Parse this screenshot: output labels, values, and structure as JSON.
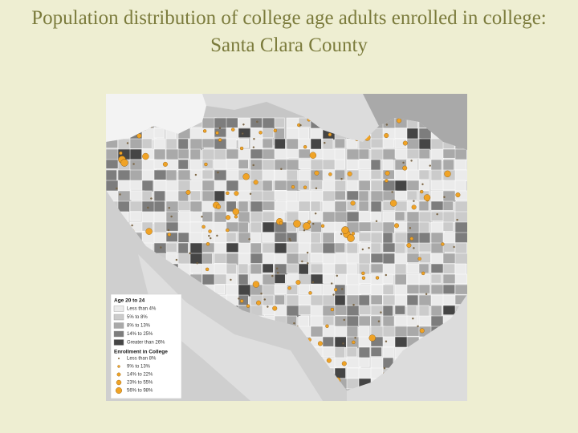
{
  "title": "Population distribution of college age adults enrolled in college: Santa Clara County",
  "legend": {
    "age_heading": "Age 20 to 24",
    "age_classes": [
      "Less than 4%",
      "5% to 8%",
      "8% to 13%",
      "14% to 25%",
      "Greater than 26%"
    ],
    "enrollment_heading": "Enrollment in College",
    "enrollment_classes": [
      "Less than 8%",
      "9% to 13%",
      "14% to 22%",
      "23% to 55%",
      "56% to 98%"
    ]
  }
}
